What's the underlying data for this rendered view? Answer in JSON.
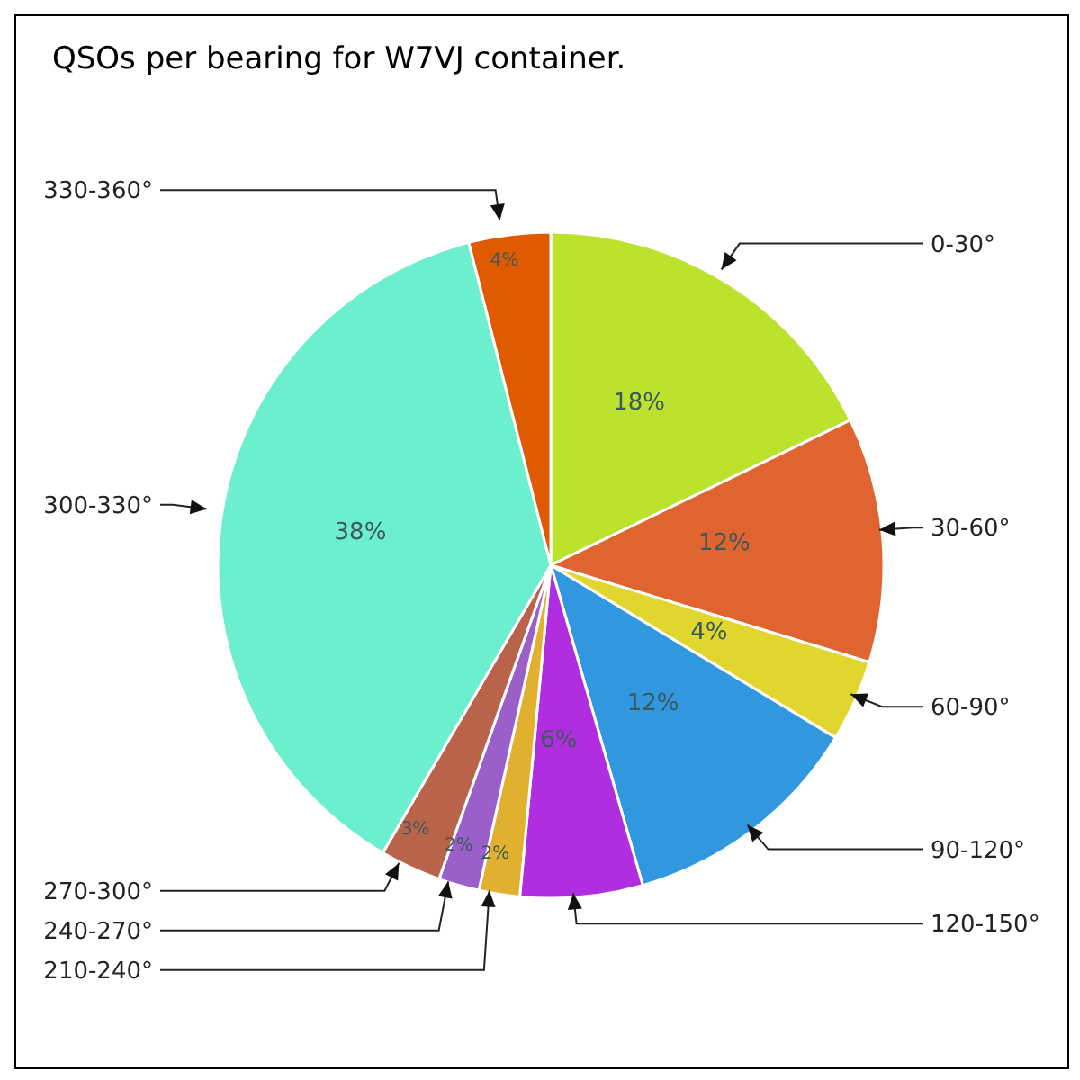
{
  "chart_data": {
    "type": "pie",
    "title": "QSOs per bearing for W7VJ container.",
    "categories": [
      "0-30°",
      "30-60°",
      "60-90°",
      "90-120°",
      "120-150°",
      "210-240°",
      "240-270°",
      "270-300°",
      "300-330°",
      "330-360°"
    ],
    "values": [
      18,
      12,
      4,
      12,
      6,
      2,
      2,
      3,
      38,
      4
    ],
    "value_labels": [
      "18%",
      "12%",
      "4%",
      "12%",
      "6%",
      "2%",
      "2%",
      "3%",
      "38%",
      "4%"
    ],
    "colors": [
      "#bde22e",
      "#e06430",
      "#e0d62e",
      "#3198e0",
      "#b02ee0",
      "#e0b02e",
      "#9a5fc8",
      "#b8634a",
      "#6cefcf",
      "#e05a00"
    ]
  }
}
